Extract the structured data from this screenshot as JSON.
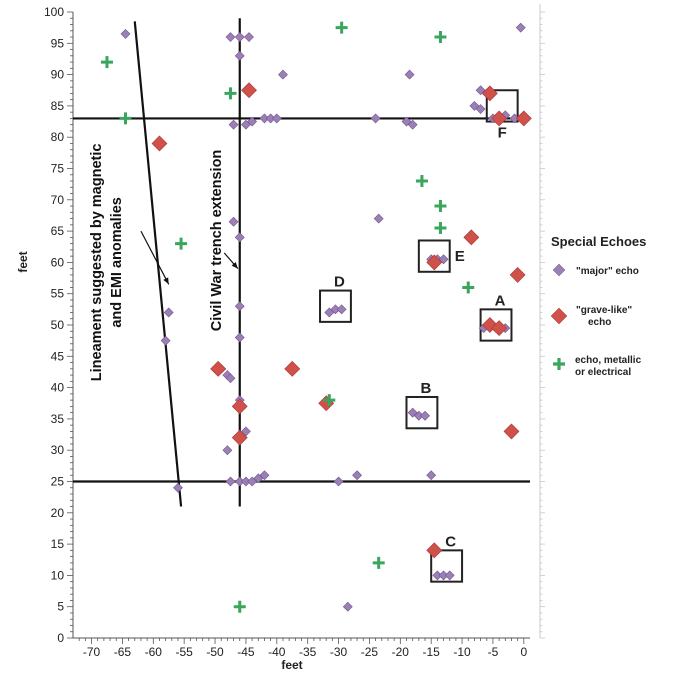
{
  "chart_data": {
    "type": "scatter",
    "xlabel": "feet",
    "ylabel": "feet",
    "xlim": [
      -73,
      1
    ],
    "ylim": [
      0,
      100
    ],
    "x_ticks": [
      -70,
      -65,
      -60,
      -55,
      -50,
      -45,
      -40,
      -35,
      -30,
      -25,
      -20,
      -15,
      -10,
      -5,
      0
    ],
    "y_ticks": [
      0,
      5,
      10,
      15,
      20,
      25,
      30,
      35,
      40,
      45,
      50,
      55,
      60,
      65,
      70,
      75,
      80,
      85,
      90,
      95,
      100
    ],
    "legend": {
      "title": "Special Echoes",
      "placement": "right",
      "entries": [
        {
          "key": "major",
          "lines": [
            "\"major\" echo"
          ]
        },
        {
          "key": "grave",
          "lines": [
            "\"grave-like\"",
            "echo"
          ]
        },
        {
          "key": "metal",
          "lines": [
            "echo, metallic",
            "or electrical"
          ]
        }
      ]
    },
    "colors": {
      "major": "#9b7fb5",
      "grave": "#d0504a",
      "metal": "#3aa55c",
      "line": "#111111"
    },
    "lines": [
      {
        "name": "horizontal-line-83",
        "points": [
          [
            -73,
            83
          ],
          [
            1,
            83
          ]
        ]
      },
      {
        "name": "horizontal-line-25",
        "points": [
          [
            -73,
            25
          ],
          [
            1,
            25
          ]
        ]
      },
      {
        "name": "civil-war-trench-line",
        "points": [
          [
            -46,
            21
          ],
          [
            -46,
            99
          ]
        ]
      },
      {
        "name": "lineament-line",
        "points": [
          [
            -63,
            98.5
          ],
          [
            -55.5,
            21
          ]
        ]
      }
    ],
    "line_labels": [
      {
        "name": "civil-war-trench-label",
        "text": "Civil War trench extension",
        "x": -49,
        "y": 63.5
      },
      {
        "name": "lineament-label-line1",
        "text": "Lineament suggested by magnetic",
        "x": -68.5,
        "y": 60
      },
      {
        "name": "lineament-label-line2",
        "text": "and EMI anomalies",
        "x": -65.2,
        "y": 60
      }
    ],
    "arrows": [
      {
        "name": "lineament-arrow",
        "from": [
          -62,
          65
        ],
        "to": [
          -57.5,
          56.5
        ]
      },
      {
        "name": "trench-arrow",
        "from": [
          -48.5,
          61.5
        ],
        "to": [
          -46.3,
          59
        ]
      }
    ],
    "boxes": [
      {
        "label": "A",
        "x0": -7,
        "x1": -2,
        "y0": 47.5,
        "y1": 52.5
      },
      {
        "label": "B",
        "x0": -19,
        "x1": -14,
        "y0": 33.5,
        "y1": 38.5
      },
      {
        "label": "C",
        "x0": -15,
        "x1": -10,
        "y0": 9,
        "y1": 14
      },
      {
        "label": "D",
        "x0": -33,
        "x1": -28,
        "y0": 50.5,
        "y1": 55.5
      },
      {
        "label": "E",
        "x0": -17,
        "x1": -12,
        "y0": 58.5,
        "y1": 63.5
      },
      {
        "label": "F",
        "x0": -6,
        "x1": -1,
        "y0": 82.5,
        "y1": 87.5
      }
    ],
    "series": [
      {
        "key": "major",
        "name": "\"major\" echo",
        "points": [
          [
            -64.5,
            96.5
          ],
          [
            -47.5,
            96
          ],
          [
            -46,
            96
          ],
          [
            -44.5,
            96
          ],
          [
            -46,
            93
          ],
          [
            -39,
            90
          ],
          [
            -47,
            82
          ],
          [
            -45,
            82
          ],
          [
            -44,
            82.5
          ],
          [
            -42,
            83
          ],
          [
            -41,
            83
          ],
          [
            -40,
            83
          ],
          [
            -24,
            83
          ],
          [
            -19,
            82.5
          ],
          [
            -18,
            82
          ],
          [
            -18.5,
            90
          ],
          [
            -23.5,
            67
          ],
          [
            -0.5,
            97.5
          ],
          [
            -7,
            87.5
          ],
          [
            -6,
            87
          ],
          [
            -8,
            85
          ],
          [
            -7,
            84.5
          ],
          [
            -5,
            83
          ],
          [
            -3,
            83.5
          ],
          [
            -1.5,
            83
          ],
          [
            -47,
            66.5
          ],
          [
            -46,
            64
          ],
          [
            -46,
            53
          ],
          [
            -46,
            48
          ],
          [
            -57.5,
            52
          ],
          [
            -58,
            47.5
          ],
          [
            -56,
            24
          ],
          [
            -49,
            43
          ],
          [
            -48,
            42
          ],
          [
            -47.5,
            41.5
          ],
          [
            -46,
            38
          ],
          [
            -45,
            33
          ],
          [
            -46,
            32
          ],
          [
            -48,
            30
          ],
          [
            -47.5,
            25
          ],
          [
            -46,
            25
          ],
          [
            -45,
            25
          ],
          [
            -44,
            25
          ],
          [
            -43,
            25.5
          ],
          [
            -42,
            26
          ],
          [
            -31.5,
            52
          ],
          [
            -30.5,
            52.5
          ],
          [
            -29.5,
            52.5
          ],
          [
            -18,
            36
          ],
          [
            -17,
            35.5
          ],
          [
            -16,
            35.5
          ],
          [
            -15,
            60.5
          ],
          [
            -14,
            60.5
          ],
          [
            -13,
            60.5
          ],
          [
            -6.5,
            49.5
          ],
          [
            -4.5,
            49.5
          ],
          [
            -3,
            49.5
          ],
          [
            -30,
            25
          ],
          [
            -27,
            26
          ],
          [
            -15,
            26
          ],
          [
            -14,
            10
          ],
          [
            -13,
            10
          ],
          [
            -12,
            10
          ],
          [
            -28.5,
            5
          ]
        ]
      },
      {
        "key": "grave",
        "name": "\"grave-like\" echo",
        "points": [
          [
            -44.5,
            87.5
          ],
          [
            -5.5,
            87
          ],
          [
            -59,
            79
          ],
          [
            -4,
            83
          ],
          [
            0,
            83
          ],
          [
            -8.5,
            64
          ],
          [
            -1,
            58
          ],
          [
            -14.5,
            60
          ],
          [
            -5.5,
            50
          ],
          [
            -4,
            49.5
          ],
          [
            -49.5,
            43
          ],
          [
            -37.5,
            43
          ],
          [
            -46,
            37
          ],
          [
            -32,
            37.5
          ],
          [
            -46,
            32
          ],
          [
            -2,
            33
          ],
          [
            -14.5,
            14
          ]
        ]
      },
      {
        "key": "metal",
        "name": "echo, metallic or electrical",
        "points": [
          [
            -29.5,
            97.5
          ],
          [
            -13.5,
            96
          ],
          [
            -67.5,
            92
          ],
          [
            -47.5,
            87
          ],
          [
            -64.5,
            83
          ],
          [
            -16.5,
            73
          ],
          [
            -13.5,
            69
          ],
          [
            -13.5,
            65.5
          ],
          [
            -55.5,
            63
          ],
          [
            -9,
            56
          ],
          [
            -31.5,
            38
          ],
          [
            -23.5,
            12
          ],
          [
            -46,
            5
          ]
        ]
      }
    ]
  }
}
